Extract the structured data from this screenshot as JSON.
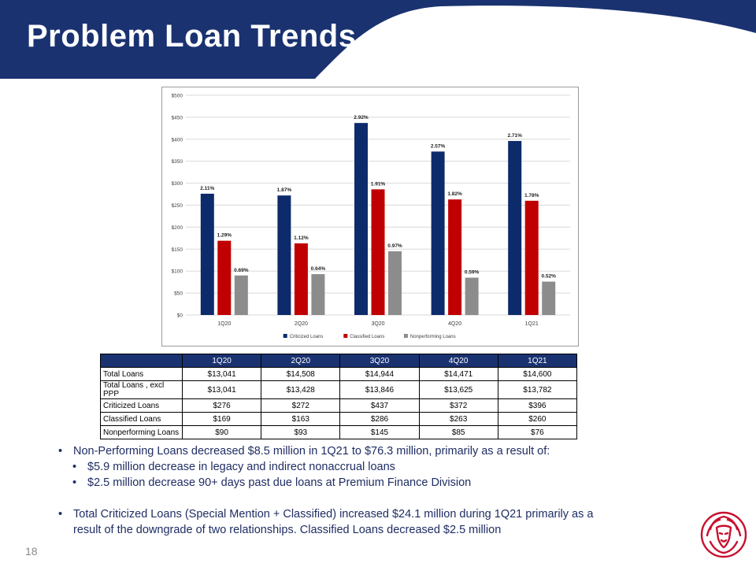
{
  "header": {
    "title": "Problem Loan Trends",
    "band_color": "#1a3270"
  },
  "chart_data": {
    "type": "bar",
    "categories": [
      "1Q20",
      "2Q20",
      "3Q20",
      "4Q20",
      "1Q21"
    ],
    "series": [
      {
        "name": "Criticized Loans",
        "color": "#0d2b6b",
        "values": [
          276,
          272,
          437,
          372,
          396
        ],
        "labels": [
          "2.11%",
          "1.87%",
          "2.92%",
          "2.57%",
          "2.71%"
        ]
      },
      {
        "name": "Classified Loans",
        "color": "#c00000",
        "values": [
          169,
          163,
          286,
          263,
          260
        ],
        "labels": [
          "1.29%",
          "1.12%",
          "1.91%",
          "1.82%",
          "1.78%"
        ]
      },
      {
        "name": "Nonperforming Loans",
        "color": "#8c8c8c",
        "values": [
          90,
          93,
          145,
          85,
          76
        ],
        "labels": [
          "0.69%",
          "0.64%",
          "0.97%",
          "0.59%",
          "0.52%"
        ]
      }
    ],
    "ylim": [
      0,
      500
    ],
    "yticks": [
      0,
      50,
      100,
      150,
      200,
      250,
      300,
      350,
      400,
      450,
      500
    ],
    "ytick_labels": [
      "$0",
      "$50",
      "$100",
      "$150",
      "$200",
      "$250",
      "$300",
      "$350",
      "$400",
      "$450",
      "$500"
    ],
    "grid": true,
    "legend": "bottom"
  },
  "table": {
    "headers": [
      "",
      "1Q20",
      "2Q20",
      "3Q20",
      "4Q20",
      "1Q21"
    ],
    "rows": [
      {
        "label": "Total Loans",
        "cells": [
          "$13,041",
          "$14,508",
          "$14,944",
          "$14,471",
          "$14,600"
        ]
      },
      {
        "label": "Total Loans , excl PPP",
        "cells": [
          "$13,041",
          "$13,428",
          "$13,846",
          "$13,625",
          "$13,782"
        ]
      },
      {
        "label": "Criticized Loans",
        "cells": [
          "$276",
          "$272",
          "$437",
          "$372",
          "$396"
        ]
      },
      {
        "label": "Classified Loans",
        "cells": [
          "$169",
          "$163",
          "$286",
          "$263",
          "$260"
        ]
      },
      {
        "label": "Nonperforming Loans",
        "cells": [
          "$90",
          "$93",
          "$145",
          "$85",
          "$76"
        ]
      }
    ]
  },
  "bullets": {
    "b1": "Non-Performing Loans decreased $8.5 million in 1Q21 to $76.3 million, primarily as a result of:",
    "b1_sub1": "$5.9 million decrease in legacy and indirect nonaccrual loans",
    "b1_sub2": "$2.5 million decrease 90+ days past due loans at Premium Finance Division",
    "b2_line1": "Total Criticized Loans (Special Mention + Classified) increased $24.1 million during 1Q21 primarily as a",
    "b2_line2": "result of the downgrade of two relationships.  Classified Loans decreased $2.5 million",
    "bullet_glyph": "•"
  },
  "footer": {
    "page_number": "18",
    "logo_icon": "lion-head-logo-icon",
    "logo_color": "#c8102e"
  }
}
